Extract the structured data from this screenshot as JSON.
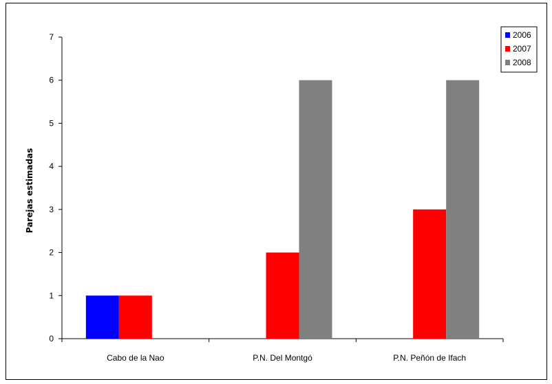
{
  "chart_data": {
    "type": "bar",
    "title": "",
    "xlabel": "",
    "ylabel": "Parejas estimadas",
    "categories": [
      "Cabo de la Nao",
      "P.N. Del Montgó",
      "P.N. Peñón de Ifach"
    ],
    "series": [
      {
        "name": "2006",
        "color": "#0000ff",
        "values": [
          1,
          0,
          0
        ]
      },
      {
        "name": "2007",
        "color": "#ff0000",
        "values": [
          1,
          2,
          3
        ]
      },
      {
        "name": "2008",
        "color": "#808080",
        "values": [
          0,
          6,
          6
        ]
      }
    ],
    "ylim": [
      0,
      7
    ],
    "yticks": [
      "0",
      "1",
      "2",
      "3",
      "4",
      "5",
      "6",
      "7"
    ],
    "grid": false,
    "legend_position": "top-right"
  }
}
